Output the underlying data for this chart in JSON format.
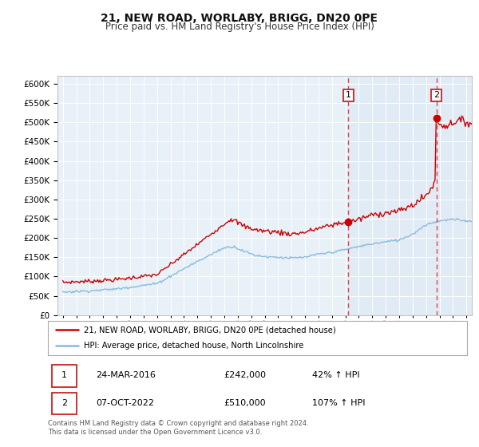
{
  "title": "21, NEW ROAD, WORLABY, BRIGG, DN20 0PE",
  "subtitle": "Price paid vs. HM Land Registry's House Price Index (HPI)",
  "title_fontsize": 10,
  "subtitle_fontsize": 8.5,
  "red_label": "21, NEW ROAD, WORLABY, BRIGG, DN20 0PE (detached house)",
  "blue_label": "HPI: Average price, detached house, North Lincolnshire",
  "annotation1_date": "24-MAR-2016",
  "annotation1_price": 242000,
  "annotation1_price_str": "£242,000",
  "annotation1_pct": "42% ↑ HPI",
  "annotation2_date": "07-OCT-2022",
  "annotation2_price": 510000,
  "annotation2_price_str": "£510,000",
  "annotation2_pct": "107% ↑ HPI",
  "footer": "Contains HM Land Registry data © Crown copyright and database right 2024.\nThis data is licensed under the Open Government Licence v3.0.",
  "ylim": [
    0,
    620000
  ],
  "yticks": [
    0,
    50000,
    100000,
    150000,
    200000,
    250000,
    300000,
    350000,
    400000,
    450000,
    500000,
    550000,
    600000
  ],
  "plot_bg": "#e8f0f8",
  "grid_color": "#ffffff",
  "red_color": "#cc0000",
  "blue_color": "#88bbdd",
  "dashed_color": "#dd4444",
  "point1_x_year": 2016.22,
  "point1_y": 242000,
  "point2_x_year": 2022.77,
  "point2_y": 510000,
  "xlim_left": 1994.6,
  "xlim_right": 2025.4
}
